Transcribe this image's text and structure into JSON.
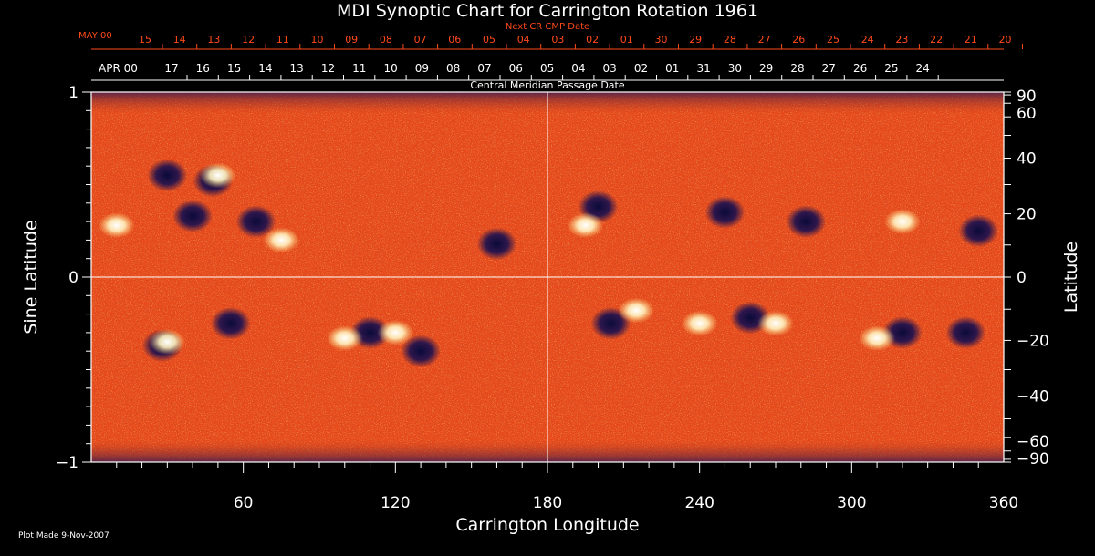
{
  "chart_data": {
    "type": "heatmap",
    "title": "MDI Synoptic Chart for Carrington Rotation 1961",
    "xlabel": "Carrington Longitude",
    "ylabel_left": "Sine Latitude",
    "ylabel_right": "Latitude",
    "x_range": [
      0,
      360
    ],
    "y_range": [
      -1,
      1
    ],
    "x_ticks": [
      60,
      120,
      180,
      240,
      300,
      360
    ],
    "x_tick_labels": [
      "60",
      "120",
      "180",
      "240",
      "300",
      "360"
    ],
    "y_left_ticks": [
      1,
      0,
      -1
    ],
    "y_left_tick_labels": [
      "1",
      "0",
      "−1"
    ],
    "y_right_ticks": [
      90,
      60,
      40,
      20,
      0,
      -20,
      -40,
      -60,
      -90
    ],
    "y_right_tick_labels": [
      "90",
      "60",
      "40",
      "20",
      "0",
      "−20",
      "−40",
      "−60",
      "−90"
    ],
    "top_axis": {
      "label": "Central Meridian Passage Date",
      "month_label": "APR 00",
      "dates": [
        "17",
        "16",
        "15",
        "14",
        "13",
        "12",
        "11",
        "10",
        "09",
        "08",
        "07",
        "06",
        "05",
        "04",
        "03",
        "02",
        "01",
        "31",
        "30",
        "29",
        "28",
        "27",
        "26",
        "25",
        "24"
      ]
    },
    "next_axis": {
      "label": "Next CR CMP Date",
      "month_label": "MAY 00",
      "dates": [
        "15",
        "14",
        "13",
        "12",
        "11",
        "10",
        "09",
        "08",
        "07",
        "06",
        "05",
        "04",
        "03",
        "02",
        "01",
        "30",
        "29",
        "28",
        "27",
        "26",
        "25",
        "24",
        "23",
        "22",
        "21",
        "20"
      ]
    },
    "active_regions": [
      {
        "lon": 30,
        "lat": 0.55,
        "polarity": "negative"
      },
      {
        "lon": 48,
        "lat": 0.52,
        "polarity": "negative"
      },
      {
        "lon": 65,
        "lat": 0.3,
        "polarity": "negative"
      },
      {
        "lon": 40,
        "lat": 0.33,
        "polarity": "negative"
      },
      {
        "lon": 160,
        "lat": 0.18,
        "polarity": "negative"
      },
      {
        "lon": 200,
        "lat": 0.38,
        "polarity": "negative"
      },
      {
        "lon": 250,
        "lat": 0.35,
        "polarity": "negative"
      },
      {
        "lon": 282,
        "lat": 0.3,
        "polarity": "negative"
      },
      {
        "lon": 350,
        "lat": 0.25,
        "polarity": "negative"
      },
      {
        "lon": 28,
        "lat": -0.37,
        "polarity": "negative"
      },
      {
        "lon": 55,
        "lat": -0.25,
        "polarity": "negative"
      },
      {
        "lon": 110,
        "lat": -0.3,
        "polarity": "negative"
      },
      {
        "lon": 130,
        "lat": -0.4,
        "polarity": "negative"
      },
      {
        "lon": 205,
        "lat": -0.25,
        "polarity": "negative"
      },
      {
        "lon": 260,
        "lat": -0.22,
        "polarity": "negative"
      },
      {
        "lon": 320,
        "lat": -0.3,
        "polarity": "negative"
      },
      {
        "lon": 345,
        "lat": -0.3,
        "polarity": "negative"
      },
      {
        "lon": 50,
        "lat": 0.55,
        "polarity": "positive"
      },
      {
        "lon": 10,
        "lat": 0.28,
        "polarity": "positive"
      },
      {
        "lon": 75,
        "lat": 0.2,
        "polarity": "positive"
      },
      {
        "lon": 195,
        "lat": 0.28,
        "polarity": "positive"
      },
      {
        "lon": 320,
        "lat": 0.3,
        "polarity": "positive"
      },
      {
        "lon": 30,
        "lat": -0.35,
        "polarity": "positive"
      },
      {
        "lon": 100,
        "lat": -0.33,
        "polarity": "positive"
      },
      {
        "lon": 120,
        "lat": -0.3,
        "polarity": "positive"
      },
      {
        "lon": 215,
        "lat": -0.18,
        "polarity": "positive"
      },
      {
        "lon": 240,
        "lat": -0.25,
        "polarity": "positive"
      },
      {
        "lon": 270,
        "lat": -0.25,
        "polarity": "positive"
      },
      {
        "lon": 310,
        "lat": -0.33,
        "polarity": "positive"
      }
    ]
  },
  "footer": {
    "plot_made": "Plot Made  9-Nov-2007"
  },
  "colors": {
    "orange_text": "#ff4a1a",
    "background": "#000000",
    "field_base": "#e8491a"
  }
}
